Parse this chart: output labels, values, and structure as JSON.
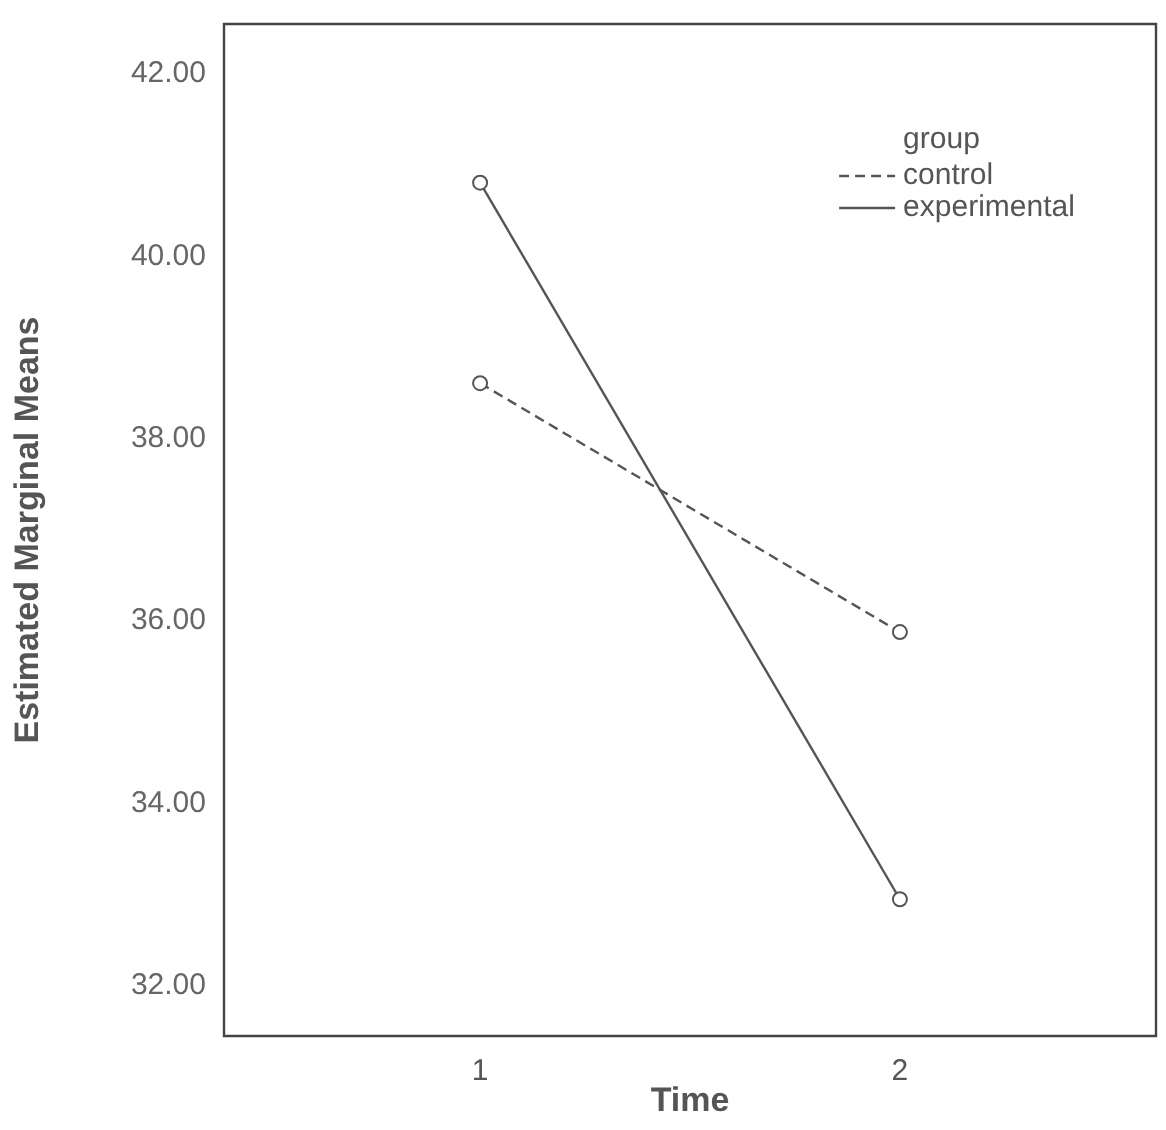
{
  "chart_data": {
    "type": "line",
    "xlabel": "Time",
    "ylabel": "Estimated Marginal Means",
    "legend_title": "group",
    "x": [
      1,
      2
    ],
    "xlim": [
      0.39,
      2.61
    ],
    "xticks": [
      1,
      2
    ],
    "ylim": [
      31.45,
      42.55
    ],
    "yticks": [
      {
        "value": 32,
        "label": "32.00"
      },
      {
        "value": 34,
        "label": "34.00"
      },
      {
        "value": 36,
        "label": "36.00"
      },
      {
        "value": 38,
        "label": "38.00"
      },
      {
        "value": 40,
        "label": "40.00"
      },
      {
        "value": 42,
        "label": "42.00"
      }
    ],
    "series": [
      {
        "name": "control",
        "color": "#555555",
        "values": [
          38.61,
          35.88
        ],
        "line_style": "dashed"
      },
      {
        "name": "experimental",
        "color": "#555555",
        "values": [
          40.81,
          32.95
        ],
        "line_style": "solid"
      }
    ],
    "marker": "circle",
    "grid": false,
    "legend": "top right"
  }
}
